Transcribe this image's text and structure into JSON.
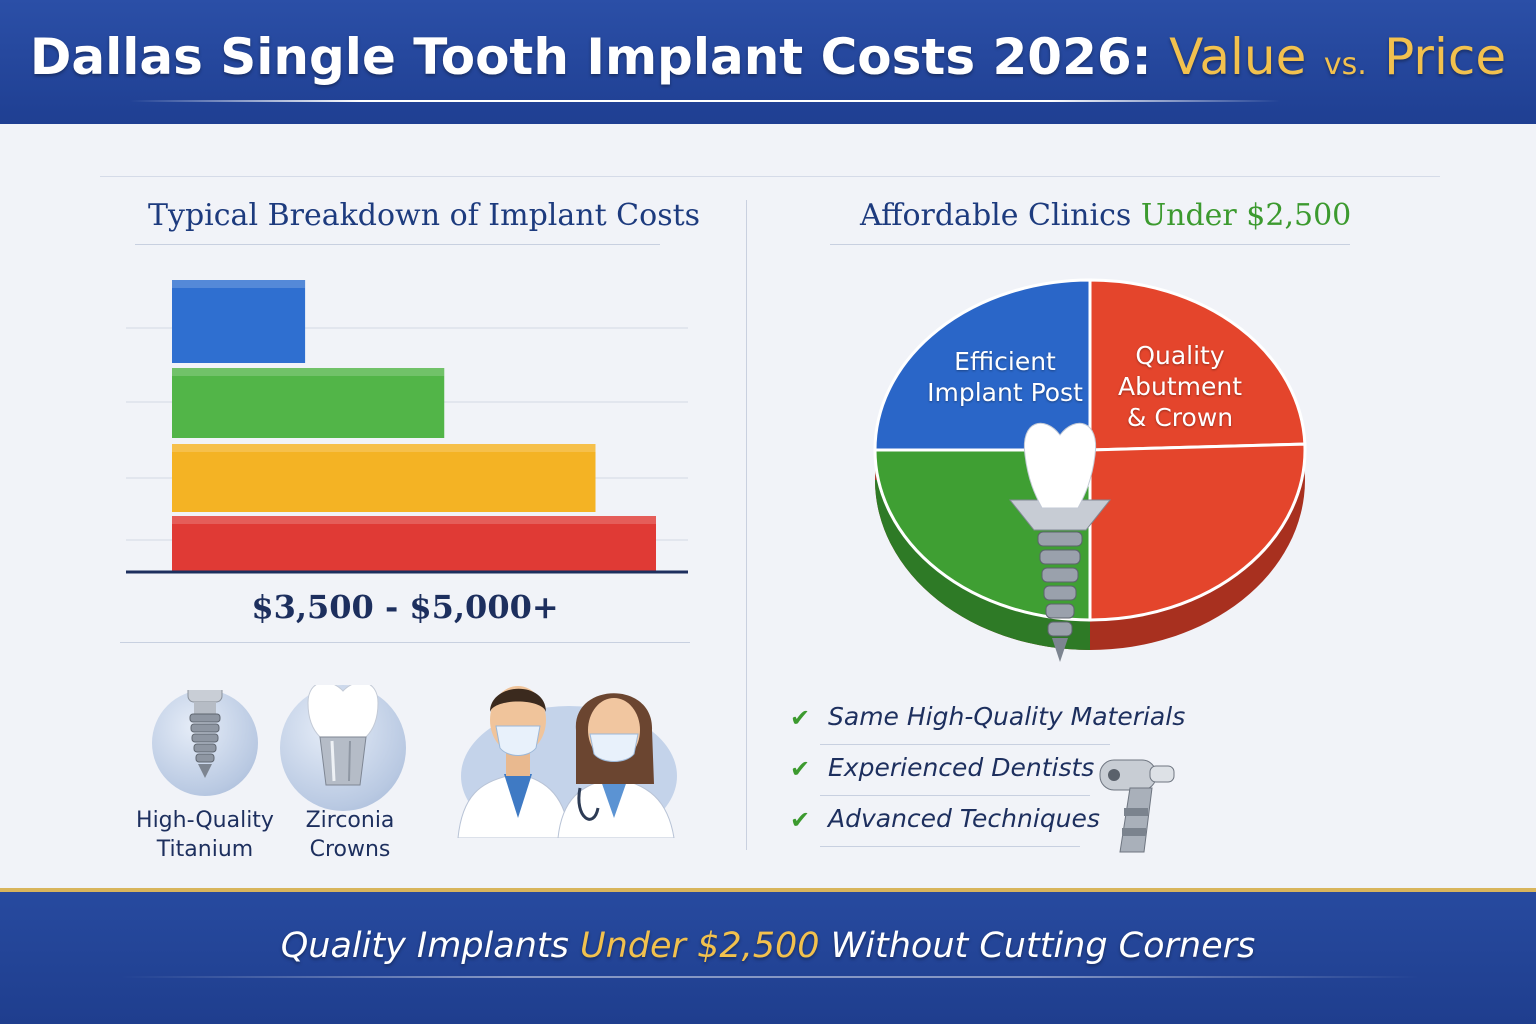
{
  "header": {
    "title_main": "Dallas Single Tooth Implant Costs 2026:",
    "title_value": "Value",
    "title_vs": "vs.",
    "title_price": "Price"
  },
  "left": {
    "title": "Typical Breakdown of Implant Costs",
    "range_label": "$3,500 - $5,000+",
    "icons": [
      {
        "name": "titanium-implant-icon",
        "label_line1": "High-Quality",
        "label_line2": "Titanium"
      },
      {
        "name": "zirconia-crown-icon",
        "label_line1": "Zirconia",
        "label_line2": "Crowns"
      },
      {
        "name": "dentists-icon"
      }
    ]
  },
  "right": {
    "title_prefix": "Affordable Clinics",
    "title_highlight": "Under $2,500",
    "pie_label_blue_1": "Efficient",
    "pie_label_blue_2": "Implant Post",
    "pie_label_red_1": "Quality",
    "pie_label_red_2": "Abutment",
    "pie_label_red_3": "& Crown",
    "checklist": [
      {
        "text": "Same High-Quality Materials"
      },
      {
        "text": "Experienced Dentists"
      },
      {
        "text": "Advanced Techniques"
      }
    ],
    "check_icon": "check-icon",
    "tool_icon": "dental-handpiece-icon"
  },
  "footer": {
    "text_prefix": "Quality Implants",
    "text_highlight": "Under $2,500",
    "text_suffix": "Without Cutting Corners"
  },
  "colors": {
    "header_blue": "#2b4fa7",
    "gold": "#f2c14e",
    "bar_blue": "#2f6fd0",
    "bar_green": "#52b548",
    "bar_yellow": "#f4b324",
    "bar_red": "#e03a35",
    "accent_green": "#3c9a2f"
  },
  "chart_data": [
    {
      "type": "bar",
      "orientation": "horizontal",
      "title": "Typical Breakdown of Implant Costs",
      "categories": [
        "",
        "",
        "",
        ""
      ],
      "values": [
        22,
        45,
        70,
        80
      ],
      "colors": [
        "#2f6fd0",
        "#52b548",
        "#f4b324",
        "#e03a35"
      ],
      "xlabel": "$3,500 - $5,000+",
      "grid": true
    },
    {
      "type": "pie",
      "title": "Affordable Clinics Under $2,500",
      "labels": [
        "Efficient Implant Post",
        "Quality Abutment & Crown",
        "",
        ""
      ],
      "values": [
        25,
        25,
        25,
        25
      ],
      "colors": [
        "#2a66c8",
        "#e4452c",
        "#e4452c",
        "#3f9f33"
      ]
    }
  ]
}
